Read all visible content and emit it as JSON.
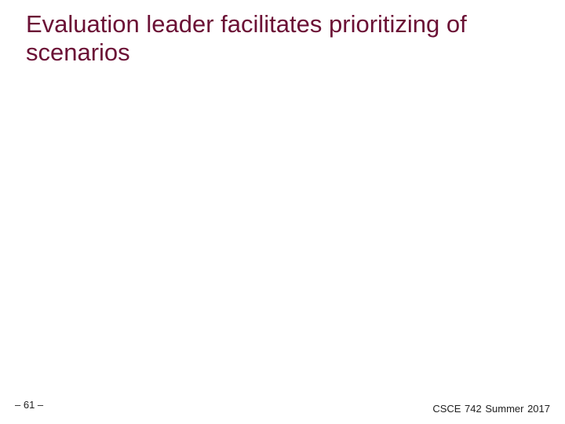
{
  "slide": {
    "title": "Evaluation leader facilitates prioritizing of scenarios",
    "page_number": "– 61 –",
    "course_label": "CSCE 742  Summer 2017",
    "colors": {
      "title": "#6b1035",
      "footer": "#222222",
      "background": "#ffffff"
    }
  }
}
